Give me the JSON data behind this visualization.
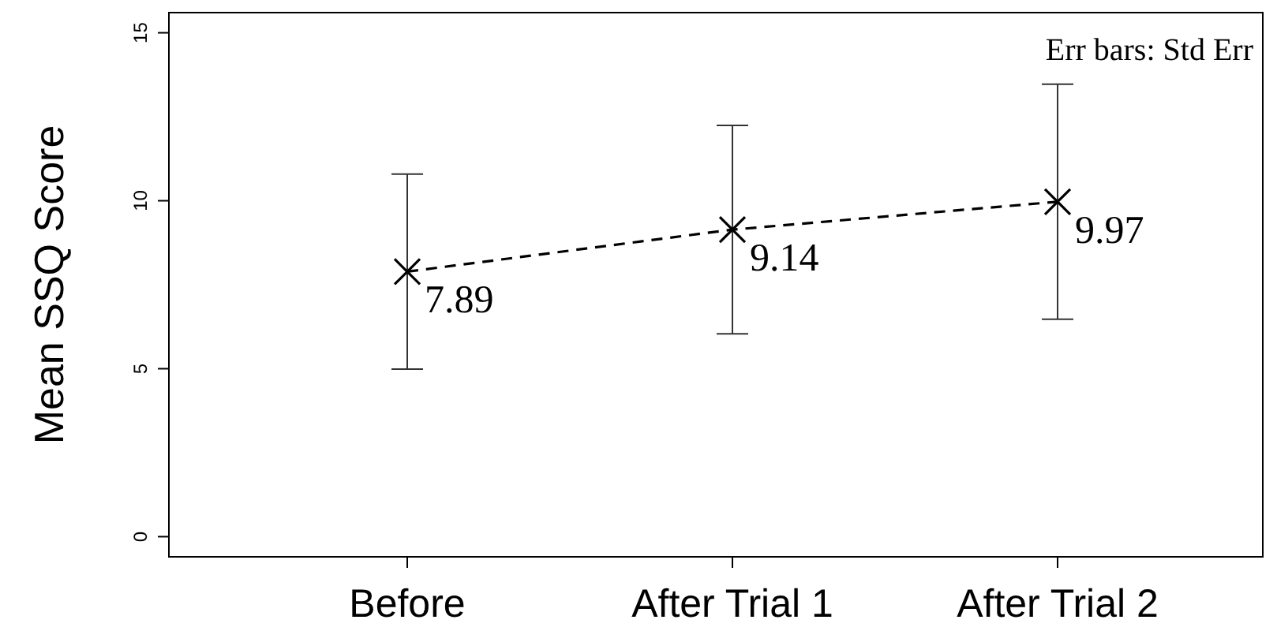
{
  "chart_data": {
    "type": "line",
    "ylabel": "Mean SSQ Score",
    "categories": [
      "Before",
      "After Trial 1",
      "After Trial 2"
    ],
    "series": [
      {
        "color": "#000000",
        "values": [
          7.89,
          9.14,
          9.97
        ],
        "errors": [
          2.9,
          3.1,
          3.5
        ]
      }
    ],
    "ylim": [
      -0.6,
      15.6
    ],
    "yticks": [
      0,
      5,
      10,
      15
    ],
    "marker": "cross",
    "line_style": "dashed",
    "data_labels": true,
    "grid": false,
    "annotations": [
      "Err bars: Std Err"
    ]
  }
}
